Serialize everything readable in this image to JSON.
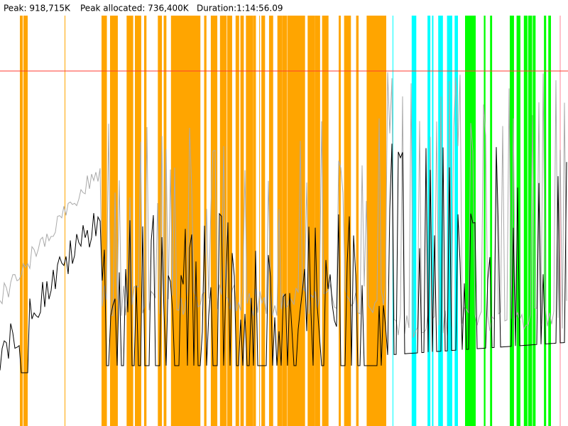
{
  "header": {
    "peak": "Peak: 918,715K",
    "peak_allocated": "Peak allocated: 736,400K",
    "duration": "Duration:1:14:56.09"
  }
}
